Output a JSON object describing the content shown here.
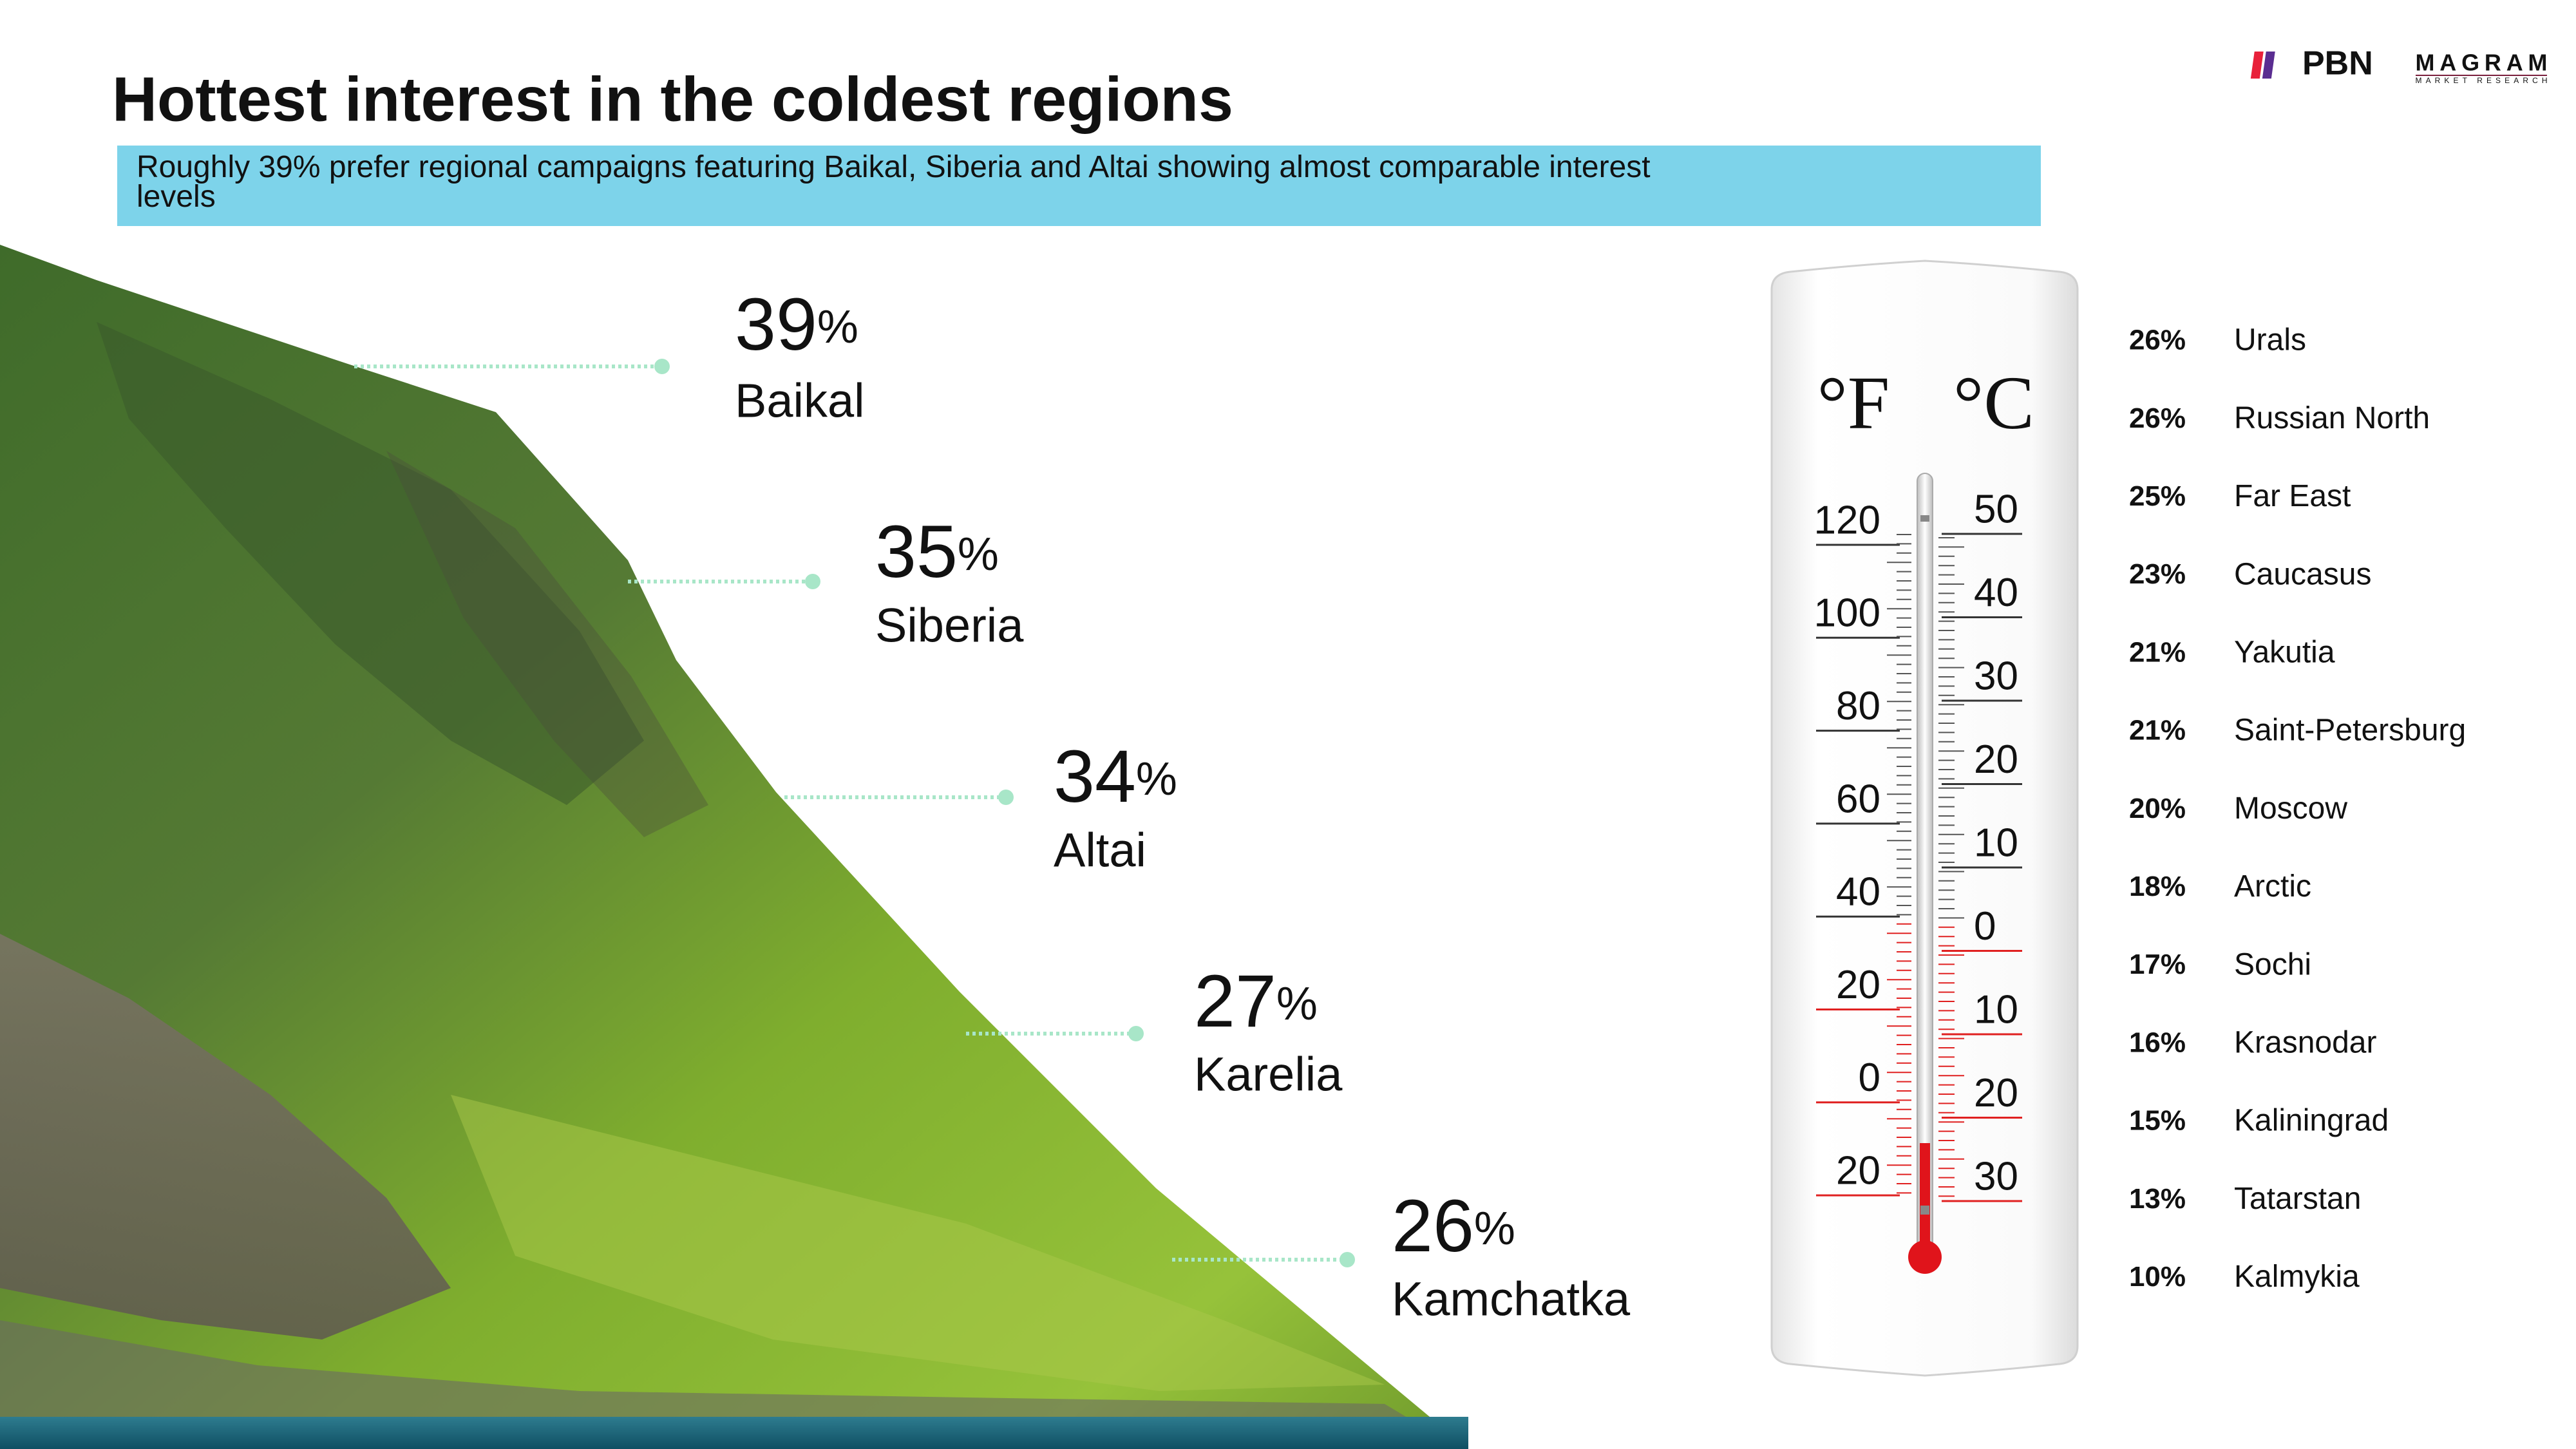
{
  "header": {
    "title": "Hottest interest in the coldest regions",
    "subtitle": "Roughly 39% prefer regional campaigns featuring Baikal, Siberia and Altai showing almost comparable interest levels"
  },
  "logos": {
    "pbn": "PBN",
    "magram": "MAGRAM",
    "magram_tagline": "MARKET RESEARCH"
  },
  "top_regions": [
    {
      "value": "39",
      "unit": "%",
      "name": "Baikal"
    },
    {
      "value": "35",
      "unit": "%",
      "name": "Siberia"
    },
    {
      "value": "34",
      "unit": "%",
      "name": "Altai"
    },
    {
      "value": "27",
      "unit": "%",
      "name": "Karelia"
    },
    {
      "value": "26",
      "unit": "%",
      "name": "Kamchatka"
    }
  ],
  "thermometer": {
    "fahrenheit_unit": "°F",
    "celsius_unit": "°C",
    "fahrenheit": [
      {
        "label": "120",
        "color": "#333333"
      },
      {
        "label": "100",
        "color": "#333333"
      },
      {
        "label": "80",
        "color": "#333333"
      },
      {
        "label": "60",
        "color": "#333333"
      },
      {
        "label": "40",
        "color": "#333333"
      },
      {
        "label": "20",
        "color": "#e02020"
      },
      {
        "label": "0",
        "color": "#e02020"
      },
      {
        "label": "20",
        "color": "#e02020"
      }
    ],
    "celsius": [
      {
        "label": "50",
        "color": "#333333"
      },
      {
        "label": "40",
        "color": "#333333"
      },
      {
        "label": "30",
        "color": "#333333"
      },
      {
        "label": "20",
        "color": "#333333"
      },
      {
        "label": "10",
        "color": "#333333"
      },
      {
        "label": "0",
        "color": "#e02020"
      },
      {
        "label": "10",
        "color": "#e02020"
      },
      {
        "label": "20",
        "color": "#e02020"
      },
      {
        "label": "30",
        "color": "#e02020"
      }
    ]
  },
  "other_regions": [
    {
      "share": "26%",
      "name": "Urals"
    },
    {
      "share": "26%",
      "name": "Russian North"
    },
    {
      "share": "25%",
      "name": "Far East"
    },
    {
      "share": "23%",
      "name": "Caucasus"
    },
    {
      "share": "21%",
      "name": "Yakutia"
    },
    {
      "share": "21%",
      "name": "Saint-Petersburg"
    },
    {
      "share": "20%",
      "name": "Moscow"
    },
    {
      "share": "18%",
      "name": "Arctic"
    },
    {
      "share": "17%",
      "name": "Sochi"
    },
    {
      "share": "16%",
      "name": "Krasnodar"
    },
    {
      "share": "15%",
      "name": "Kaliningrad"
    },
    {
      "share": "13%",
      "name": "Tatarstan"
    },
    {
      "share": "10%",
      "name": "Kalmykia"
    }
  ]
}
